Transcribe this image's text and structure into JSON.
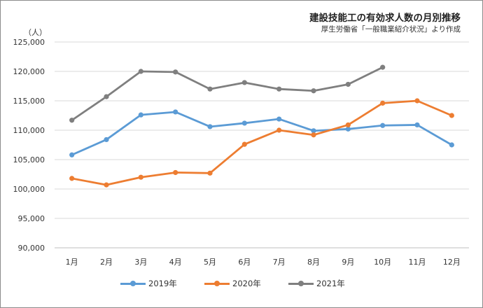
{
  "chart_data": {
    "type": "line",
    "title": "建設技能工の有効求人数の月別推移",
    "subtitle": "厚生労働省「一般職業紹介状況」より作成",
    "ylabel": "（人）",
    "ylim": [
      90000,
      125000
    ],
    "yticks": [
      90000,
      95000,
      100000,
      105000,
      110000,
      115000,
      120000,
      125000
    ],
    "ytick_labels": [
      "90,000",
      "95,000",
      "100,000",
      "105,000",
      "110,000",
      "115,000",
      "120,000",
      "125,000"
    ],
    "categories": [
      "1月",
      "2月",
      "3月",
      "4月",
      "5月",
      "6月",
      "7月",
      "8月",
      "9月",
      "10月",
      "11月",
      "12月"
    ],
    "grid": true,
    "legend_position": "bottom",
    "series": [
      {
        "name": "2019年",
        "color": "#5b9bd5",
        "values": [
          105800,
          108400,
          112600,
          113100,
          110600,
          111200,
          111900,
          109900,
          110200,
          110800,
          110900,
          107500
        ]
      },
      {
        "name": "2020年",
        "color": "#ed7d31",
        "values": [
          101800,
          100700,
          102000,
          102800,
          102700,
          107600,
          110000,
          109200,
          110900,
          114600,
          115000,
          112500
        ]
      },
      {
        "name": "2021年",
        "color": "#7f7f7f",
        "values": [
          111700,
          115700,
          120000,
          119900,
          117000,
          118100,
          117000,
          116700,
          117800,
          120700,
          null,
          null
        ]
      }
    ]
  }
}
